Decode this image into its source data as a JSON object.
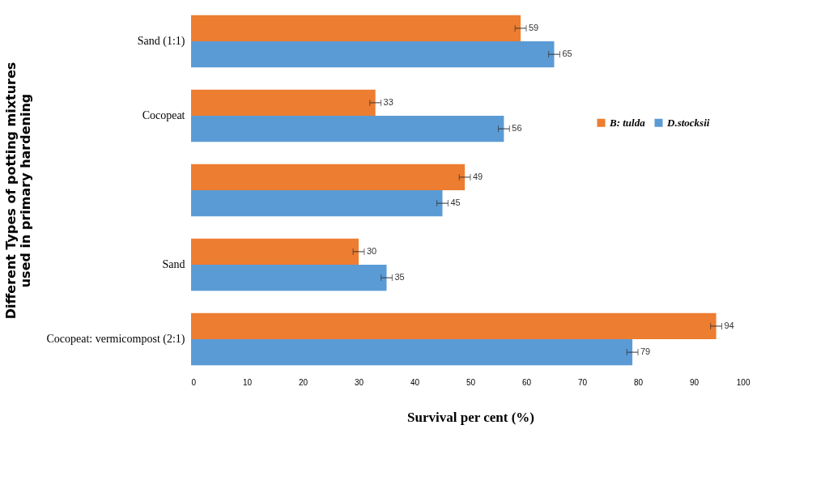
{
  "chart_data": {
    "type": "bar",
    "orientation": "horizontal",
    "categories": [
      "Sand (1:1)",
      "Cocopeat",
      null,
      "Sand",
      "Cocopeat: vermicompost  (2:1)"
    ],
    "series": [
      {
        "name": "B: tulda",
        "color": "#ed7d31",
        "values": [
          59,
          33,
          49,
          30,
          94
        ],
        "errors": [
          1,
          1,
          1,
          1,
          1
        ]
      },
      {
        "name": "D.stocksii",
        "color": "#5b9bd5",
        "values": [
          65,
          56,
          45,
          35,
          79
        ],
        "errors": [
          1,
          1,
          1,
          1,
          1
        ]
      }
    ],
    "xlim": [
      0,
      100
    ],
    "xticks": [
      0,
      10,
      20,
      30,
      40,
      50,
      60,
      70,
      80,
      90,
      100
    ],
    "xlabel": "Survival per cent (%)",
    "ylabel": "Different Types of potting mixtures used in primary hardening",
    "data_labels": true,
    "grid": false,
    "legend": "right"
  }
}
